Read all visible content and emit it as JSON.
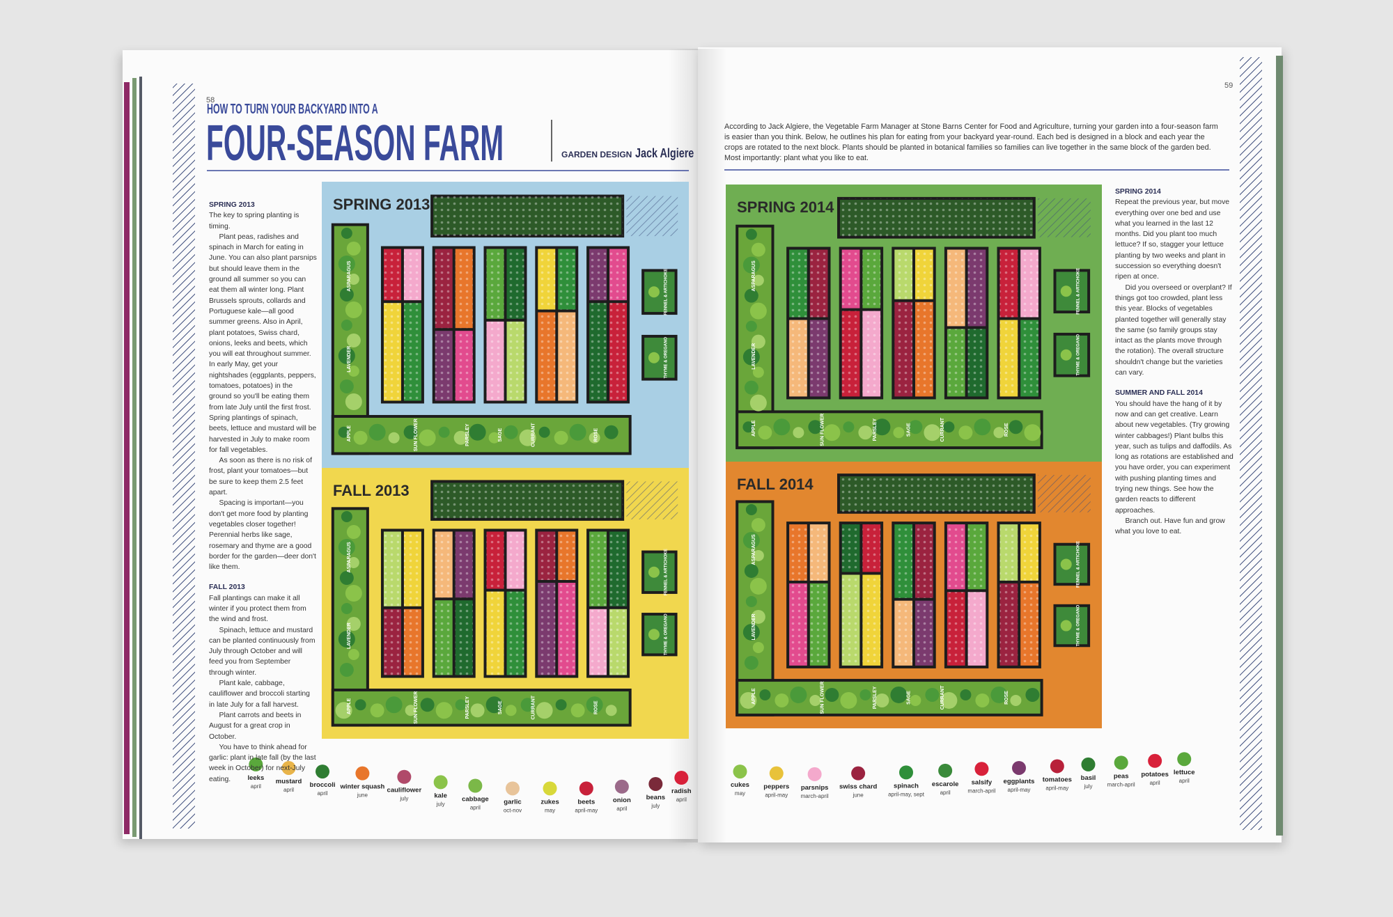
{
  "left_page": {
    "page_number": "58",
    "kicker": "HOW TO TURN YOUR BACKYARD INTO A",
    "title": "FOUR-SEASON FARM",
    "credit_label": "GARDEN DESIGN",
    "credit_name": "Jack Algiere",
    "sections": [
      {
        "heading": "SPRING 2013",
        "paragraphs": [
          "The key to spring planting is timing.",
          "Plant peas, radishes and spinach in March for eating in June. You can also plant parsnips but should leave them in the ground all summer so you can eat them all winter long. Plant Brussels sprouts, collards and Portuguese kale—all good summer greens. Also in April, plant potatoes, Swiss chard, onions, leeks and beets, which you will eat throughout summer. In early May, get your nightshades (eggplants, peppers, tomatoes, potatoes) in the ground so you'll be eating them from late July until the first frost. Spring plantings of spinach, beets, lettuce and mustard will be harvested in July to make room for fall vegetables.",
          "As soon as there is no risk of frost, plant your tomatoes—but be sure to keep them 2.5 feet apart.",
          "Spacing is important—you don't get more food by planting vegetables closer together! Perennial herbs like sage, rosemary and thyme are a good border for the garden—deer don't like them."
        ]
      },
      {
        "heading": "FALL 2013",
        "paragraphs": [
          "Fall plantings can make it all winter if you protect them from the wind and frost.",
          "Spinach, lettuce and mustard can be planted continuously from July through October and will feed you from September through winter.",
          "Plant kale, cabbage, cauliflower and broccoli starting in late July for a fall harvest.",
          "Plant carrots and beets in August for a great crop in October.",
          "You have to think ahead for garlic: plant in late fall (by the last week in October) for next-July eating."
        ]
      }
    ]
  },
  "right_page": {
    "page_number": "59",
    "intro": "According to Jack Algiere, the Vegetable Farm Manager at Stone Barns Center for Food and Agriculture, turning your garden into a four-season farm is easier than you think. Below, he outlines his plan for eating from your backyard year-round. Each bed is designed in a block and each year the crops are rotated to the next block. Plants should be planted in botanical families so families can live together in the same block of the garden bed. Most importantly: plant what you like to eat.",
    "sections": [
      {
        "heading": "SPRING 2014",
        "paragraphs": [
          "Repeat the previous year, but move everything over one bed and use what you learned in the last 12 months. Did you plant too much lettuce? If so, stagger your lettuce planting by two weeks and plant in succession so everything doesn't ripen at once.",
          "Did you overseed or overplant? If things got too crowded, plant less this year. Blocks of vegetables planted together will generally stay the same (so family groups stay intact as the plants move through the rotation). The overall structure shouldn't change but the varieties can vary."
        ]
      },
      {
        "heading": "SUMMER AND FALL 2014",
        "paragraphs": [
          "You should have the hang of it by now and can get creative. Learn about new vegetables. (Try growing winter cabbages!) Plant bulbs this year, such as tulips and daffodils. As long as rotations are established and you have order, you can experiment with pushing planting times and trying new things. See how the garden reacts to different approaches.",
          "Branch out. Have fun and grow what you love to eat."
        ]
      }
    ]
  },
  "gardens": {
    "panels": [
      "SPRING 2013",
      "FALL 2013",
      "SPRING 2014",
      "FALL 2014"
    ],
    "hedge_side": [
      "ASPARAGUS",
      "LAVENDER",
      "APPLE"
    ],
    "hedge_bottom": [
      "SUN FLOWER",
      "PARSLEY",
      "SAGE",
      "CURRANT",
      "ROSE"
    ],
    "boxes": [
      "FENNEL & ARTICHOKE",
      "THYME & OREGANO"
    ]
  },
  "legend_left": [
    {
      "name": "leeks",
      "season": "april"
    },
    {
      "name": "mustard",
      "season": "april"
    },
    {
      "name": "broccoli",
      "season": "april"
    },
    {
      "name": "winter squash",
      "season": "june"
    },
    {
      "name": "cauliflower",
      "season": "july"
    },
    {
      "name": "kale",
      "season": "july"
    },
    {
      "name": "cabbage",
      "season": "april"
    },
    {
      "name": "garlic",
      "season": "oct-nov"
    },
    {
      "name": "zukes",
      "season": "may"
    },
    {
      "name": "beets",
      "season": "april-may"
    },
    {
      "name": "onion",
      "season": "april"
    },
    {
      "name": "beans",
      "season": "july"
    },
    {
      "name": "radish",
      "season": "april"
    }
  ],
  "legend_right": [
    {
      "name": "cukes",
      "season": "may"
    },
    {
      "name": "peppers",
      "season": "april-may"
    },
    {
      "name": "parsnips",
      "season": "march-april"
    },
    {
      "name": "swiss chard",
      "season": "june"
    },
    {
      "name": "spinach",
      "season": "april-may, sept"
    },
    {
      "name": "escarole",
      "season": "april"
    },
    {
      "name": "salsify",
      "season": "march-april"
    },
    {
      "name": "eggplants",
      "season": "april-may"
    },
    {
      "name": "tomatoes",
      "season": "april-may"
    },
    {
      "name": "basil",
      "season": "july"
    },
    {
      "name": "peas",
      "season": "march-april"
    },
    {
      "name": "potatoes",
      "season": "april"
    },
    {
      "name": "lettuce",
      "season": "april"
    }
  ]
}
